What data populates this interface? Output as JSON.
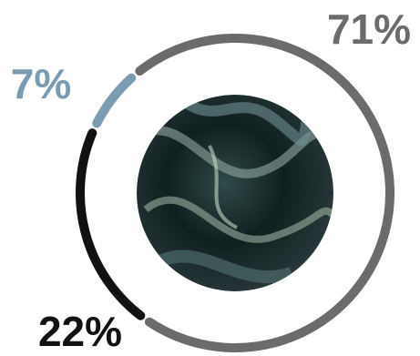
{
  "chart_data": {
    "type": "donut",
    "values": [
      71,
      22,
      7
    ],
    "value_labels": [
      "71%",
      "22%",
      "7%"
    ],
    "colors": [
      "#6b6b6b",
      "#111111",
      "#7a9cb0"
    ]
  }
}
